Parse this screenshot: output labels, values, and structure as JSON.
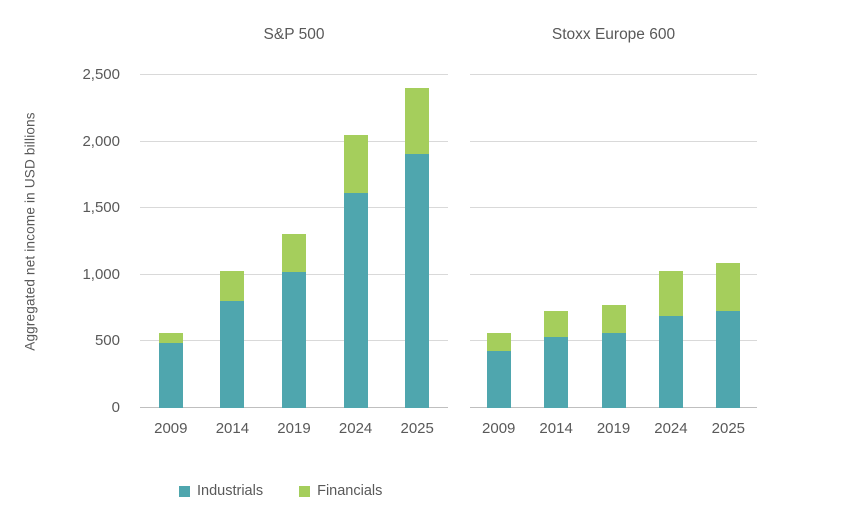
{
  "figure": {
    "y_axis_title": "Aggregated net income in USD billions",
    "legend": [
      {
        "label": "Industrials",
        "color": "#4fa6ae"
      },
      {
        "label": "Financials",
        "color": "#a5ce5c"
      }
    ],
    "colors": {
      "industrials": "#4fa6ae",
      "financials": "#a5ce5c",
      "gridline": "#d9d9d9",
      "baseline": "#bfbfbf",
      "text": "#595959"
    }
  },
  "chart_data": [
    {
      "type": "bar",
      "stacked": true,
      "title": "S&P 500",
      "categories": [
        "2009",
        "2014",
        "2019",
        "2024",
        "2025"
      ],
      "series": [
        {
          "name": "Industrials",
          "color": "#4fa6ae",
          "values": [
            490,
            800,
            1020,
            1615,
            1910
          ]
        },
        {
          "name": "Financials",
          "color": "#a5ce5c",
          "values": [
            70,
            230,
            290,
            435,
            495
          ]
        }
      ],
      "totals": [
        560,
        1030,
        1310,
        2050,
        2405
      ],
      "ylabel": "Aggregated net income in USD billions",
      "ylim": [
        0,
        2500
      ],
      "ytick_labels": [
        "0",
        "500",
        "1,000",
        "1,500",
        "2,000",
        "2,500"
      ],
      "ytick_values": [
        0,
        500,
        1000,
        1500,
        2000,
        2500
      ],
      "grid": true,
      "legend_position": "bottom"
    },
    {
      "type": "bar",
      "stacked": true,
      "title": "Stoxx Europe 600",
      "categories": [
        "2009",
        "2014",
        "2019",
        "2024",
        "2025"
      ],
      "series": [
        {
          "name": "Industrials",
          "color": "#4fa6ae",
          "values": [
            425,
            530,
            565,
            690,
            725
          ]
        },
        {
          "name": "Financials",
          "color": "#a5ce5c",
          "values": [
            135,
            195,
            205,
            340,
            360
          ]
        }
      ],
      "totals": [
        560,
        725,
        770,
        1030,
        1085
      ],
      "ylim": [
        0,
        2500
      ],
      "ytick_values": [
        0,
        500,
        1000,
        1500,
        2000,
        2500
      ],
      "grid": true
    }
  ]
}
